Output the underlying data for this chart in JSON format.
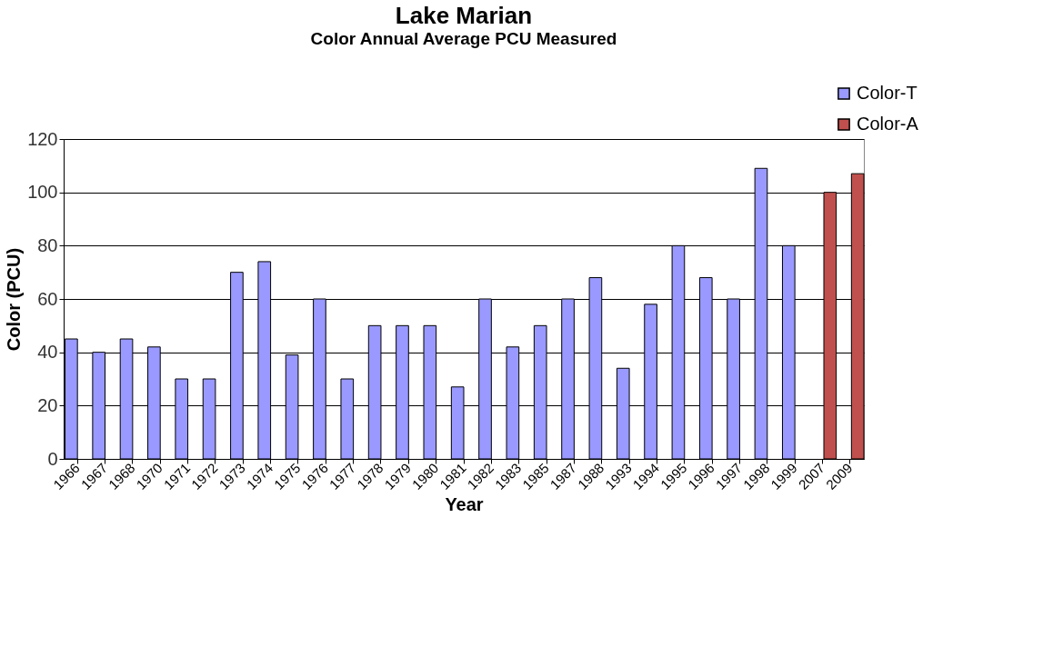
{
  "chart_data": {
    "type": "bar",
    "title": "Lake Marian",
    "subtitle": "Color Annual Average PCU Measured",
    "xlabel": "Year",
    "ylabel": "Color (PCU)",
    "categories": [
      "1966",
      "1967",
      "1968",
      "1970",
      "1971",
      "1972",
      "1973",
      "1974",
      "1975",
      "1976",
      "1977",
      "1978",
      "1979",
      "1980",
      "1981",
      "1982",
      "1983",
      "1985",
      "1987",
      "1988",
      "1993",
      "1994",
      "1995",
      "1996",
      "1997",
      "1998",
      "1999",
      "2007",
      "2009"
    ],
    "series": [
      {
        "name": "Color-T",
        "color": "#9999ff",
        "values": [
          45,
          40,
          45,
          42,
          30,
          30,
          70,
          74,
          39,
          60,
          30,
          50,
          50,
          50,
          27,
          60,
          42,
          50,
          60,
          68,
          34,
          58,
          80,
          68,
          60,
          109,
          80,
          null,
          null
        ]
      },
      {
        "name": "Color-A",
        "color": "#c0504d",
        "values": [
          null,
          null,
          null,
          null,
          null,
          null,
          null,
          null,
          null,
          null,
          null,
          null,
          null,
          null,
          null,
          null,
          null,
          null,
          null,
          null,
          null,
          null,
          null,
          null,
          null,
          null,
          null,
          100,
          107
        ]
      }
    ],
    "ylim": [
      0,
      120
    ],
    "yticks": [
      0,
      20,
      40,
      60,
      80,
      100,
      120
    ],
    "grid": "y",
    "legend": "top right"
  }
}
